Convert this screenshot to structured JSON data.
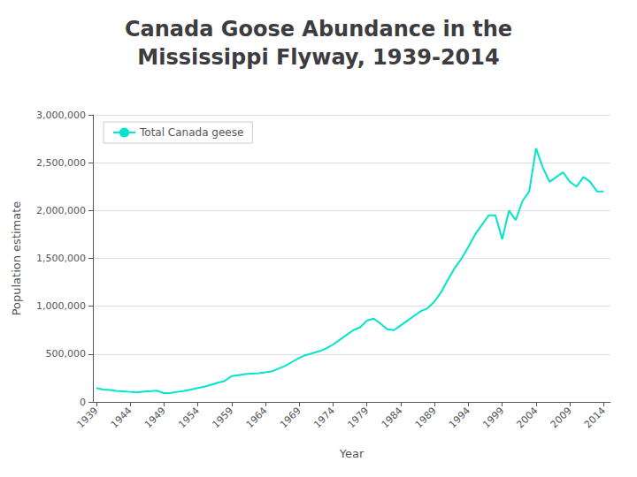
{
  "chart_data": {
    "type": "line",
    "title": "Canada Goose Abundance in the\nMississippi Flyway, 1939-2014",
    "xlabel": "Year",
    "ylabel": "Population estimate",
    "x": [
      1939,
      1940,
      1941,
      1942,
      1943,
      1944,
      1945,
      1946,
      1947,
      1948,
      1949,
      1950,
      1951,
      1952,
      1953,
      1954,
      1955,
      1956,
      1957,
      1958,
      1959,
      1960,
      1961,
      1962,
      1963,
      1964,
      1965,
      1966,
      1967,
      1968,
      1969,
      1970,
      1971,
      1972,
      1973,
      1974,
      1975,
      1976,
      1977,
      1978,
      1979,
      1980,
      1981,
      1982,
      1983,
      1984,
      1985,
      1986,
      1987,
      1988,
      1989,
      1990,
      1991,
      1992,
      1993,
      1994,
      1995,
      1996,
      1997,
      1998,
      1999,
      2000,
      2001,
      2002,
      2003,
      2004,
      2005,
      2006,
      2007,
      2008,
      2009,
      2010,
      2011,
      2012,
      2013,
      2014
    ],
    "series": [
      {
        "name": "Total Canada geese",
        "color": "#00E5CC",
        "values": [
          145000,
          130000,
          125000,
          115000,
          110000,
          105000,
          100000,
          108000,
          112000,
          118000,
          90000,
          95000,
          105000,
          115000,
          130000,
          145000,
          160000,
          180000,
          200000,
          220000,
          270000,
          280000,
          290000,
          295000,
          300000,
          310000,
          320000,
          350000,
          380000,
          420000,
          460000,
          490000,
          510000,
          530000,
          560000,
          600000,
          650000,
          700000,
          750000,
          780000,
          850000,
          870000,
          820000,
          760000,
          750000,
          800000,
          850000,
          900000,
          950000,
          980000,
          1050000,
          1150000,
          1280000,
          1400000,
          1500000,
          1620000,
          1750000,
          1850000,
          1950000,
          1950000,
          1700000,
          2000000,
          1900000,
          2100000,
          2200000,
          2650000,
          2450000,
          2300000,
          2350000,
          2400000,
          2300000,
          2250000,
          2350000,
          2300000,
          2200000,
          2200000
        ]
      }
    ],
    "xlim": [
      1938.5,
      2015
    ],
    "xticks": [
      1939,
      1944,
      1949,
      1954,
      1959,
      1964,
      1969,
      1974,
      1979,
      1984,
      1989,
      1994,
      1999,
      2004,
      2009,
      2014
    ],
    "ylim": [
      0,
      3000000
    ],
    "yticks": [
      0,
      {
        "value": 500000,
        "label": "500,000"
      },
      {
        "value": 1000000,
        "label": "1,000,000"
      },
      {
        "value": 1500000,
        "label": "1,500,000"
      },
      {
        "value": 2000000,
        "label": "2,000,000"
      },
      {
        "value": 2500000,
        "label": "2,500,000"
      },
      {
        "value": 3000000,
        "label": "3,000,000"
      }
    ],
    "grid": true,
    "legend": "upper left"
  }
}
